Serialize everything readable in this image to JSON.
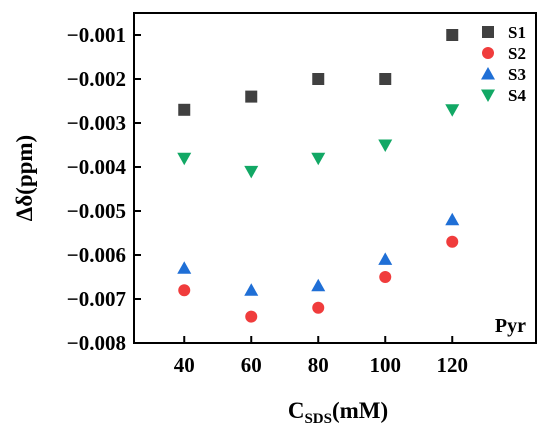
{
  "chart_data": {
    "type": "scatter",
    "x": [
      40,
      60,
      80,
      100,
      120
    ],
    "series": [
      {
        "name": "S1",
        "marker": "square",
        "color": "#404040",
        "values": [
          -0.0027,
          -0.0024,
          -0.002,
          -0.002,
          -0.001
        ]
      },
      {
        "name": "S2",
        "marker": "circle",
        "color": "#f03c3c",
        "values": [
          -0.0068,
          -0.0074,
          -0.0072,
          -0.0065,
          -0.0057
        ]
      },
      {
        "name": "S3",
        "marker": "triangle-up",
        "color": "#1f6fd6",
        "values": [
          -0.0063,
          -0.0068,
          -0.0067,
          -0.0061,
          -0.0052
        ]
      },
      {
        "name": "S4",
        "marker": "triangle-down",
        "color": "#12a865",
        "values": [
          -0.0038,
          -0.0041,
          -0.0038,
          -0.0035,
          -0.0027
        ]
      }
    ],
    "xlabel_main": "C",
    "xlabel_sub": "SDS",
    "xlabel_unit": "(mM)",
    "ylabel": "Δδ(ppm)",
    "xlim": [
      25,
      145
    ],
    "ylim": [
      -0.008,
      -0.0005
    ],
    "xticks": [
      40,
      60,
      80,
      100,
      120
    ],
    "yticks": [
      -0.008,
      -0.007,
      -0.006,
      -0.005,
      -0.004,
      -0.003,
      -0.002,
      -0.001
    ],
    "ytick_labels": [
      "−0.008",
      "−0.007",
      "−0.006",
      "−0.005",
      "−0.004",
      "−0.003",
      "−0.002",
      "−0.001"
    ],
    "annotation": "Pyr",
    "legend_position": "top-right",
    "grid": false
  }
}
